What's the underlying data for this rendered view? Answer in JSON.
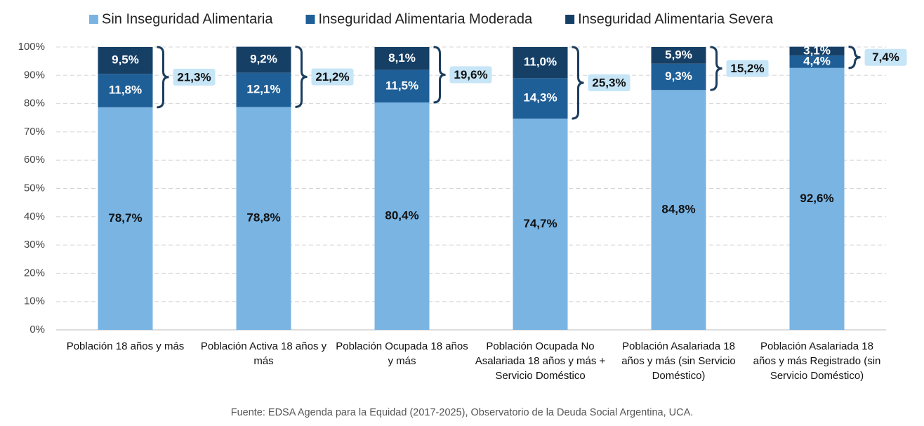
{
  "chart_data": {
    "type": "stacked_bar",
    "categories": [
      "Población 18 años y más",
      "Población Activa 18 años y más",
      "Población Ocupada 18 años y más",
      "Población Ocupada No Asalariada 18 años y más + Servicio Doméstico",
      "Población Asalariada 18 años y más (sin Servicio Doméstico)",
      "Población Asalariada 18 años y más Registrado (sin Servicio Doméstico)"
    ],
    "series": [
      {
        "name": "Sin Inseguridad Alimentaria",
        "color": "#79b4e3",
        "label_color": "#111111",
        "values": [
          78.7,
          78.8,
          80.4,
          74.7,
          84.8,
          92.6
        ],
        "value_labels": [
          "78,7%",
          "78,8%",
          "80,4%",
          "74,7%",
          "84,8%",
          "92,6%"
        ]
      },
      {
        "name": "Inseguridad Alimentaria Moderada",
        "color": "#1f5f97",
        "label_color": "#ffffff",
        "values": [
          11.8,
          12.1,
          11.5,
          14.3,
          9.3,
          4.4
        ],
        "value_labels": [
          "11,8%",
          "12,1%",
          "11,5%",
          "14,3%",
          "9,3%",
          "4,4%"
        ]
      },
      {
        "name": "Inseguridad Alimentaria Severa",
        "color": "#163f66",
        "label_color": "#ffffff",
        "values": [
          9.5,
          9.2,
          8.1,
          11.0,
          5.9,
          3.1
        ],
        "value_labels": [
          "9,5%",
          "9,2%",
          "8,1%",
          "11,0%",
          "5,9%",
          "3,1%"
        ]
      }
    ],
    "bracket_totals": {
      "values": [
        21.3,
        21.2,
        19.6,
        25.3,
        15.2,
        7.4
      ],
      "value_labels": [
        "21,3%",
        "21,2%",
        "19,6%",
        "25,3%",
        "15,2%",
        "7,4%"
      ]
    },
    "ylim": [
      0,
      100
    ],
    "yticks": [
      {
        "value": 0,
        "label": "0%"
      },
      {
        "value": 10,
        "label": "10%"
      },
      {
        "value": 20,
        "label": "20%"
      },
      {
        "value": 30,
        "label": "30%"
      },
      {
        "value": 40,
        "label": "40%"
      },
      {
        "value": 50,
        "label": "50%"
      },
      {
        "value": 60,
        "label": "60%"
      },
      {
        "value": 70,
        "label": "70%"
      },
      {
        "value": 80,
        "label": "80%"
      },
      {
        "value": 90,
        "label": "90%"
      },
      {
        "value": 100,
        "label": "100%"
      }
    ],
    "grid": true,
    "source": "Fuente: EDSA Agenda para la Equidad (2017-2025), Observatorio de la Deuda Social Argentina, UCA."
  }
}
